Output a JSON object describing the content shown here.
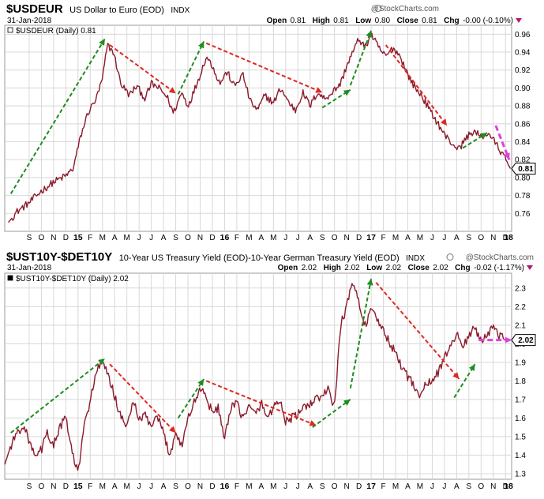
{
  "colors": {
    "price": "#8b1a2b",
    "trend_up": "#1e8c1e",
    "trend_down": "#e0281e",
    "trend_pink": "#e040e0",
    "grid": "#d8d8d8",
    "brand": "#555555"
  },
  "brand": "@StockCharts.com",
  "chart_data": [
    {
      "type": "line",
      "symbol": "$USDEUR",
      "title": "US Dollar to Euro (EOD)",
      "exchange": "INDX",
      "date": "31-Jan-2018",
      "legend": "$USDEUR (Daily) 0.81",
      "header": {
        "open_label": "Open",
        "open": "0.81",
        "high_label": "High",
        "high": "0.81",
        "low_label": "Low",
        "low": "0.80",
        "close_label": "Close",
        "close": "0.81",
        "chg_label": "Chg",
        "chg": "-0.00 (-0.10%)"
      },
      "last_value_flag": "0.81",
      "ylim": [
        0.74,
        0.97
      ],
      "y_ticks": [
        "0.76",
        "0.78",
        "0.80",
        "0.82",
        "0.84",
        "0.86",
        "0.88",
        "0.90",
        "0.92",
        "0.94",
        "0.96"
      ],
      "y_tick_values": [
        0.76,
        0.78,
        0.8,
        0.82,
        0.84,
        0.86,
        0.88,
        0.9,
        0.92,
        0.94,
        0.96
      ],
      "x_range": [
        0,
        41.5
      ],
      "x_ticks": [
        {
          "label": "S",
          "x": 2
        },
        {
          "label": "O",
          "x": 3
        },
        {
          "label": "N",
          "x": 4
        },
        {
          "label": "D",
          "x": 5
        },
        {
          "label": "15",
          "x": 6,
          "major": true
        },
        {
          "label": "F",
          "x": 7
        },
        {
          "label": "M",
          "x": 8
        },
        {
          "label": "A",
          "x": 9
        },
        {
          "label": "M",
          "x": 10
        },
        {
          "label": "J",
          "x": 11
        },
        {
          "label": "J",
          "x": 12
        },
        {
          "label": "A",
          "x": 13
        },
        {
          "label": "S",
          "x": 14
        },
        {
          "label": "O",
          "x": 15
        },
        {
          "label": "N",
          "x": 16
        },
        {
          "label": "D",
          "x": 17
        },
        {
          "label": "16",
          "x": 18,
          "major": true
        },
        {
          "label": "F",
          "x": 19
        },
        {
          "label": "M",
          "x": 20
        },
        {
          "label": "A",
          "x": 21
        },
        {
          "label": "M",
          "x": 22
        },
        {
          "label": "J",
          "x": 23
        },
        {
          "label": "J",
          "x": 24
        },
        {
          "label": "A",
          "x": 25
        },
        {
          "label": "S",
          "x": 26
        },
        {
          "label": "O",
          "x": 27
        },
        {
          "label": "N",
          "x": 28
        },
        {
          "label": "D",
          "x": 29
        },
        {
          "label": "17",
          "x": 30,
          "major": true
        },
        {
          "label": "F",
          "x": 31
        },
        {
          "label": "M",
          "x": 32
        },
        {
          "label": "A",
          "x": 33
        },
        {
          "label": "M",
          "x": 34
        },
        {
          "label": "J",
          "x": 35
        },
        {
          "label": "J",
          "x": 36
        },
        {
          "label": "A",
          "x": 37
        },
        {
          "label": "S",
          "x": 38
        },
        {
          "label": "O",
          "x": 39
        },
        {
          "label": "N",
          "x": 40
        },
        {
          "label": "D",
          "x": 41
        },
        {
          "label": "18",
          "x": 42,
          "major": true
        }
      ],
      "series_points": [
        [
          0.3,
          0.75
        ],
        [
          1.0,
          0.762
        ],
        [
          2.0,
          0.772
        ],
        [
          3.0,
          0.785
        ],
        [
          4.0,
          0.795
        ],
        [
          5.0,
          0.802
        ],
        [
          5.6,
          0.81
        ],
        [
          6.2,
          0.845
        ],
        [
          6.8,
          0.872
        ],
        [
          7.5,
          0.888
        ],
        [
          8.0,
          0.91
        ],
        [
          8.4,
          0.948
        ],
        [
          8.9,
          0.94
        ],
        [
          9.5,
          0.905
        ],
        [
          10.2,
          0.892
        ],
        [
          10.8,
          0.902
        ],
        [
          11.5,
          0.888
        ],
        [
          12.0,
          0.905
        ],
        [
          12.6,
          0.9
        ],
        [
          13.3,
          0.89
        ],
        [
          13.8,
          0.872
        ],
        [
          14.5,
          0.895
        ],
        [
          15.0,
          0.88
        ],
        [
          15.4,
          0.893
        ],
        [
          16.0,
          0.915
        ],
        [
          16.5,
          0.935
        ],
        [
          17.0,
          0.925
        ],
        [
          17.6,
          0.905
        ],
        [
          18.2,
          0.918
        ],
        [
          18.8,
          0.902
        ],
        [
          19.5,
          0.915
        ],
        [
          20.1,
          0.885
        ],
        [
          20.7,
          0.875
        ],
        [
          21.3,
          0.892
        ],
        [
          22.0,
          0.883
        ],
        [
          22.6,
          0.9
        ],
        [
          23.2,
          0.885
        ],
        [
          23.8,
          0.875
        ],
        [
          24.4,
          0.895
        ],
        [
          25.0,
          0.88
        ],
        [
          25.6,
          0.895
        ],
        [
          26.2,
          0.888
        ],
        [
          26.8,
          0.895
        ],
        [
          27.5,
          0.905
        ],
        [
          28.0,
          0.925
        ],
        [
          28.5,
          0.94
        ],
        [
          29.0,
          0.955
        ],
        [
          29.5,
          0.945
        ],
        [
          30.0,
          0.96
        ],
        [
          30.6,
          0.945
        ],
        [
          31.2,
          0.935
        ],
        [
          31.8,
          0.945
        ],
        [
          32.4,
          0.935
        ],
        [
          33.0,
          0.915
        ],
        [
          33.6,
          0.9
        ],
        [
          34.2,
          0.89
        ],
        [
          34.8,
          0.875
        ],
        [
          35.4,
          0.862
        ],
        [
          36.0,
          0.848
        ],
        [
          36.6,
          0.838
        ],
        [
          37.2,
          0.832
        ],
        [
          37.8,
          0.845
        ],
        [
          38.4,
          0.852
        ],
        [
          39.0,
          0.845
        ],
        [
          39.6,
          0.85
        ],
        [
          40.2,
          0.838
        ],
        [
          40.8,
          0.825
        ],
        [
          41.4,
          0.81
        ]
      ],
      "trendlines": [
        {
          "kind": "up",
          "from": [
            0.5,
            0.782
          ],
          "to": [
            8.2,
            0.955
          ]
        },
        {
          "kind": "down",
          "from": [
            8.6,
            0.948
          ],
          "to": [
            14.0,
            0.894
          ]
        },
        {
          "kind": "up",
          "from": [
            14.2,
            0.893
          ],
          "to": [
            16.3,
            0.952
          ]
        },
        {
          "kind": "down",
          "from": [
            16.5,
            0.95
          ],
          "to": [
            26.0,
            0.895
          ]
        },
        {
          "kind": "up",
          "from": [
            26.0,
            0.878
          ],
          "to": [
            28.3,
            0.898
          ]
        },
        {
          "kind": "up",
          "from": [
            28.3,
            0.903
          ],
          "to": [
            30.0,
            0.964
          ]
        },
        {
          "kind": "down",
          "from": [
            31.2,
            0.948
          ],
          "to": [
            36.2,
            0.858
          ]
        },
        {
          "kind": "up",
          "from": [
            37.5,
            0.833
          ],
          "to": [
            39.5,
            0.85
          ]
        },
        {
          "kind": "pink",
          "from": [
            40.2,
            0.858
          ],
          "to": [
            41.3,
            0.82
          ]
        }
      ]
    },
    {
      "type": "line",
      "symbol": "$UST10Y-$DET10Y",
      "title": "10-Year US Treasury Yield (EOD)-10-Year German Treasury Yield (EOD)",
      "exchange": "INDX",
      "date": "31-Jan-2018",
      "legend": "$UST10Y-$DET10Y (Daily) 2.02",
      "header": {
        "open_label": "Open",
        "open": "2.02",
        "high_label": "High",
        "high": "2.02",
        "low_label": "Low",
        "low": "2.02",
        "close_label": "Close",
        "close": "2.02",
        "chg_label": "Chg",
        "chg": "-0.02 (-1.17%)"
      },
      "last_value_flag": "2.02",
      "ylim": [
        1.27,
        2.38
      ],
      "y_ticks": [
        "1.3",
        "1.4",
        "1.5",
        "1.6",
        "1.7",
        "1.8",
        "1.9",
        "2.0",
        "2.1",
        "2.2",
        "2.3"
      ],
      "y_tick_values": [
        1.3,
        1.4,
        1.5,
        1.6,
        1.7,
        1.8,
        1.9,
        2.0,
        2.1,
        2.2,
        2.3
      ],
      "x_range": [
        0,
        41.5
      ],
      "x_ticks": [
        {
          "label": "S",
          "x": 2
        },
        {
          "label": "O",
          "x": 3
        },
        {
          "label": "N",
          "x": 4
        },
        {
          "label": "D",
          "x": 5
        },
        {
          "label": "15",
          "x": 6,
          "major": true
        },
        {
          "label": "F",
          "x": 7
        },
        {
          "label": "M",
          "x": 8
        },
        {
          "label": "A",
          "x": 9
        },
        {
          "label": "M",
          "x": 10
        },
        {
          "label": "J",
          "x": 11
        },
        {
          "label": "J",
          "x": 12
        },
        {
          "label": "A",
          "x": 13
        },
        {
          "label": "S",
          "x": 14
        },
        {
          "label": "O",
          "x": 15
        },
        {
          "label": "N",
          "x": 16
        },
        {
          "label": "D",
          "x": 17
        },
        {
          "label": "16",
          "x": 18,
          "major": true
        },
        {
          "label": "F",
          "x": 19
        },
        {
          "label": "M",
          "x": 20
        },
        {
          "label": "A",
          "x": 21
        },
        {
          "label": "M",
          "x": 22
        },
        {
          "label": "J",
          "x": 23
        },
        {
          "label": "J",
          "x": 24
        },
        {
          "label": "A",
          "x": 25
        },
        {
          "label": "S",
          "x": 26
        },
        {
          "label": "O",
          "x": 27
        },
        {
          "label": "N",
          "x": 28
        },
        {
          "label": "D",
          "x": 29
        },
        {
          "label": "17",
          "x": 30,
          "major": true
        },
        {
          "label": "F",
          "x": 31
        },
        {
          "label": "M",
          "x": 32
        },
        {
          "label": "A",
          "x": 33
        },
        {
          "label": "M",
          "x": 34
        },
        {
          "label": "J",
          "x": 35
        },
        {
          "label": "J",
          "x": 36
        },
        {
          "label": "A",
          "x": 37
        },
        {
          "label": "S",
          "x": 38
        },
        {
          "label": "O",
          "x": 39
        },
        {
          "label": "N",
          "x": 40
        },
        {
          "label": "D",
          "x": 41
        },
        {
          "label": "18",
          "x": 42,
          "major": true
        }
      ],
      "series_points": [
        [
          0.0,
          1.35
        ],
        [
          0.5,
          1.45
        ],
        [
          1.0,
          1.52
        ],
        [
          1.5,
          1.56
        ],
        [
          2.0,
          1.48
        ],
        [
          2.5,
          1.38
        ],
        [
          3.0,
          1.43
        ],
        [
          3.5,
          1.52
        ],
        [
          4.0,
          1.45
        ],
        [
          4.5,
          1.55
        ],
        [
          5.0,
          1.6
        ],
        [
          5.5,
          1.42
        ],
        [
          6.0,
          1.3
        ],
        [
          6.5,
          1.55
        ],
        [
          7.0,
          1.7
        ],
        [
          7.5,
          1.85
        ],
        [
          8.0,
          1.9
        ],
        [
          8.5,
          1.82
        ],
        [
          9.0,
          1.72
        ],
        [
          9.5,
          1.6
        ],
        [
          10.0,
          1.55
        ],
        [
          10.5,
          1.7
        ],
        [
          11.0,
          1.58
        ],
        [
          11.5,
          1.62
        ],
        [
          12.0,
          1.55
        ],
        [
          12.5,
          1.6
        ],
        [
          13.0,
          1.52
        ],
        [
          13.5,
          1.4
        ],
        [
          14.0,
          1.52
        ],
        [
          14.5,
          1.45
        ],
        [
          15.0,
          1.6
        ],
        [
          15.5,
          1.68
        ],
        [
          16.0,
          1.76
        ],
        [
          16.5,
          1.72
        ],
        [
          17.0,
          1.62
        ],
        [
          17.5,
          1.66
        ],
        [
          18.0,
          1.48
        ],
        [
          18.5,
          1.65
        ],
        [
          19.0,
          1.68
        ],
        [
          19.5,
          1.6
        ],
        [
          20.0,
          1.66
        ],
        [
          20.5,
          1.62
        ],
        [
          21.0,
          1.68
        ],
        [
          21.5,
          1.6
        ],
        [
          22.0,
          1.66
        ],
        [
          22.5,
          1.7
        ],
        [
          23.0,
          1.58
        ],
        [
          23.5,
          1.6
        ],
        [
          24.0,
          1.62
        ],
        [
          24.5,
          1.65
        ],
        [
          25.0,
          1.68
        ],
        [
          25.5,
          1.7
        ],
        [
          26.0,
          1.72
        ],
        [
          26.5,
          1.75
        ],
        [
          27.0,
          1.66
        ],
        [
          27.5,
          2.1
        ],
        [
          28.0,
          2.2
        ],
        [
          28.5,
          2.34
        ],
        [
          29.0,
          2.22
        ],
        [
          29.5,
          2.1
        ],
        [
          30.0,
          2.18
        ],
        [
          30.5,
          2.12
        ],
        [
          31.0,
          2.08
        ],
        [
          31.5,
          2.0
        ],
        [
          32.0,
          1.95
        ],
        [
          32.5,
          1.88
        ],
        [
          33.0,
          1.82
        ],
        [
          33.5,
          1.78
        ],
        [
          34.0,
          1.72
        ],
        [
          34.5,
          1.78
        ],
        [
          35.0,
          1.8
        ],
        [
          35.5,
          1.85
        ],
        [
          36.0,
          1.92
        ],
        [
          36.5,
          2.0
        ],
        [
          37.0,
          2.05
        ],
        [
          37.5,
          1.98
        ],
        [
          38.0,
          2.05
        ],
        [
          38.5,
          2.08
        ],
        [
          39.0,
          2.02
        ],
        [
          39.5,
          2.06
        ],
        [
          40.0,
          2.08
        ],
        [
          40.5,
          2.04
        ],
        [
          41.0,
          2.02
        ]
      ],
      "trendlines": [
        {
          "kind": "up",
          "from": [
            0.5,
            1.52
          ],
          "to": [
            8.2,
            1.92
          ]
        },
        {
          "kind": "down",
          "from": [
            8.6,
            1.89
          ],
          "to": [
            14.0,
            1.52
          ]
        },
        {
          "kind": "up",
          "from": [
            14.2,
            1.6
          ],
          "to": [
            16.3,
            1.81
          ]
        },
        {
          "kind": "down",
          "from": [
            16.5,
            1.8
          ],
          "to": [
            25.5,
            1.56
          ]
        },
        {
          "kind": "up",
          "from": [
            25.2,
            1.55
          ],
          "to": [
            28.3,
            1.7
          ]
        },
        {
          "kind": "up",
          "from": [
            28.3,
            1.76
          ],
          "to": [
            30.0,
            2.35
          ]
        },
        {
          "kind": "down",
          "from": [
            30.4,
            2.33
          ],
          "to": [
            37.2,
            1.81
          ]
        },
        {
          "kind": "up",
          "from": [
            36.8,
            1.71
          ],
          "to": [
            38.5,
            1.89
          ]
        },
        {
          "kind": "pink",
          "from": [
            38.8,
            2.02
          ],
          "to": [
            41.5,
            2.02
          ]
        }
      ]
    }
  ]
}
